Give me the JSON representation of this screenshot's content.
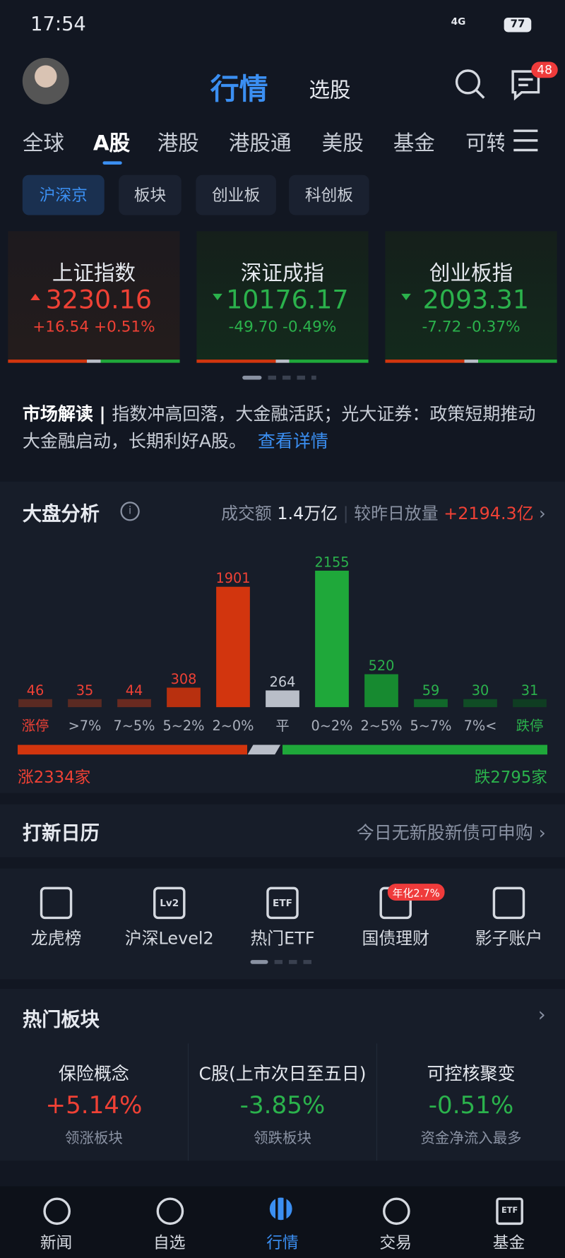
{
  "status": {
    "time": "17:54",
    "network": "4G",
    "battery": "77"
  },
  "header": {
    "tabs": [
      "行情",
      "选股"
    ],
    "badge": "48"
  },
  "market_tabs": [
    "全球",
    "A股",
    "港股",
    "港股通",
    "美股",
    "基金",
    "可转"
  ],
  "sub_tabs": [
    "沪深京",
    "板块",
    "创业板",
    "科创板"
  ],
  "indices": [
    {
      "name": "上证指数",
      "value": "3230.16",
      "change": "+16.54",
      "pct": "+0.51%"
    },
    {
      "name": "深证成指",
      "value": "10176.17",
      "change": "-49.70",
      "pct": "-0.49%"
    },
    {
      "name": "创业板指",
      "value": "2093.31",
      "change": "-7.72",
      "pct": "-0.37%"
    }
  ],
  "interpretation": {
    "label": "市场解读",
    "text": "指数冲高回落，大金融活跃；光大证券：政策短期推动大金融启动，长期利好A股。",
    "link": "查看详情"
  },
  "analysis": {
    "title": "大盘分析",
    "turnover_label": "成交额",
    "turnover": "1.4万亿",
    "compare_label": "较昨日放量",
    "compare": "+2194.3亿",
    "categories": [
      "涨停",
      ">7%",
      "7~5%",
      "5~2%",
      "2~0%",
      "平",
      "0~2%",
      "2~5%",
      "5~7%",
      "7%<",
      "跌停"
    ],
    "values": [
      46,
      35,
      44,
      308,
      1901,
      264,
      2155,
      520,
      59,
      30,
      31
    ],
    "colors": [
      "#5a2a22",
      "#5a2a22",
      "#6a2a20",
      "#b8300f",
      "#d2350e",
      "#b9bec8",
      "#1fa83a",
      "#178a30",
      "#11682a",
      "#104d25",
      "#0f3d22"
    ],
    "label_colors": [
      "#ef4135",
      "#ef4135",
      "#ef4135",
      "#ef4135",
      "#ef4135",
      "#c8cdd6",
      "#2bb24c",
      "#2bb24c",
      "#2bb24c",
      "#2bb24c",
      "#2bb24c"
    ],
    "up": "涨2334家",
    "down": "跌2795家"
  },
  "new_stock": {
    "title": "打新日历",
    "text": "今日无新股新债可申购"
  },
  "tools": [
    {
      "label": "龙虎榜"
    },
    {
      "label": "沪深Level2",
      "icon": "Lv2"
    },
    {
      "label": "热门ETF",
      "icon": "ETF"
    },
    {
      "label": "国债理财",
      "badge": "年化2.7%"
    },
    {
      "label": "影子账户"
    }
  ],
  "hot_sectors": {
    "title": "热门板块",
    "items": [
      {
        "name": "保险概念",
        "value": "+5.14%",
        "desc": "领涨板块"
      },
      {
        "name": "C股(上市次日至五日)",
        "value": "-3.85%",
        "desc": "领跌板块"
      },
      {
        "name": "可控核聚变",
        "value": "-0.51%",
        "desc": "资金净流入最多"
      }
    ]
  },
  "nav": [
    {
      "label": "新闻"
    },
    {
      "label": "自选"
    },
    {
      "label": "行情"
    },
    {
      "label": "交易"
    },
    {
      "label": "基金",
      "icon": "ETF"
    }
  ]
}
